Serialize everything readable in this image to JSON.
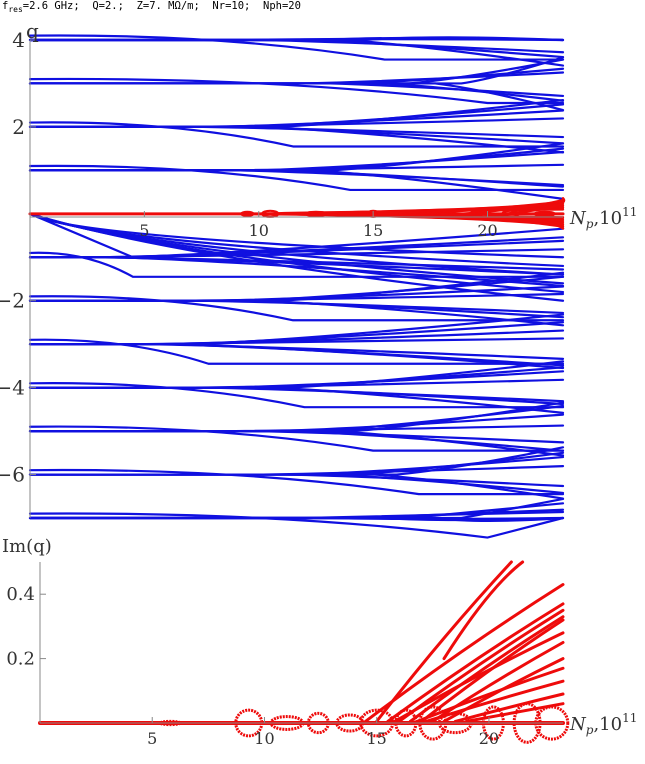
{
  "header": {
    "f_prefix": "f",
    "f_sub": "res",
    "f_rest": "=2.6 GHz;  Q=2.;  Z=7. MΩ/m;  Nr=10;  Nph=20"
  },
  "colors": {
    "re": "#1010e0",
    "im": "#ee0b0b",
    "axis": "#888888"
  },
  "chart_data": [
    {
      "type": "line",
      "ylabel": "q",
      "xlabel_main": "N",
      "xlabel_sub": "p",
      "xlabel_rest": ",10",
      "xlabel_exp": "11",
      "xlim": [
        0,
        23.3
      ],
      "ylim": [
        -7,
        4
      ],
      "x_ticks": [
        "5",
        "10",
        "15",
        "20"
      ],
      "y_ticks": [
        "4",
        "2",
        "−2",
        "−4",
        "−6"
      ],
      "branch_points": [
        {
          "q": 4,
          "x_split": 15.5
        },
        {
          "q": 3,
          "x_split": 20
        },
        {
          "q": 2,
          "x_split": 11.5
        },
        {
          "q": 1,
          "x_split": 14
        },
        {
          "q": -1,
          "x_split": 4.5
        },
        {
          "q": -2,
          "x_split": 11.5
        },
        {
          "q": -3,
          "x_split": 7.8
        },
        {
          "q": -4,
          "x_split": 12
        },
        {
          "q": -5,
          "x_split": 15
        },
        {
          "q": -6,
          "x_split": 17
        },
        {
          "q": -7,
          "x_split": 20
        }
      ]
    },
    {
      "type": "scatter",
      "ylabel": "Im(q)",
      "xlabel_main": "N",
      "xlabel_sub": "p",
      "xlabel_rest": ",10",
      "xlabel_exp": "11",
      "xlim": [
        0,
        23.3
      ],
      "ylim": [
        0,
        0.5
      ],
      "x_ticks": [
        "5",
        "10",
        "15",
        "20"
      ],
      "y_ticks": [
        "0.4",
        "0.2"
      ]
    }
  ]
}
